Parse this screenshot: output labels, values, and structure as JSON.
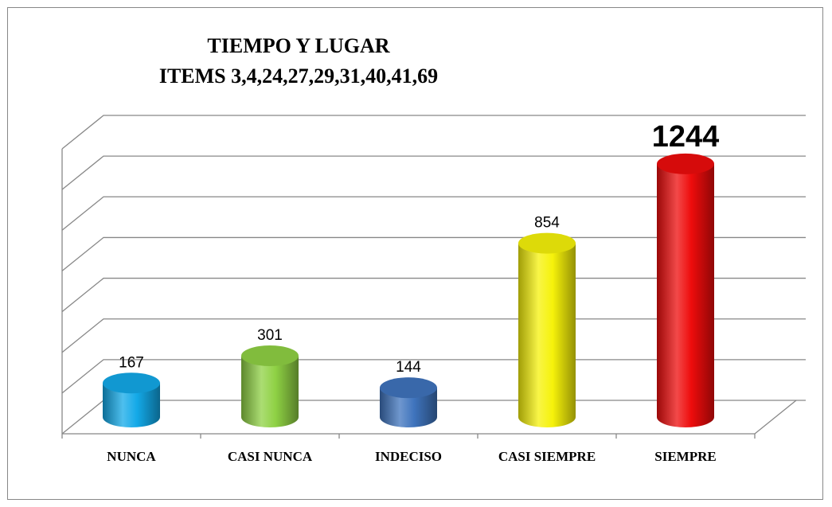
{
  "chart_data": {
    "type": "bar3d",
    "title": "TIEMPO Y LUGAR",
    "subtitle": "ITEMS 3,4,24,27,29,31,40,41,69",
    "categories": [
      "NUNCA",
      "CASI NUNCA",
      "INDECISO",
      "CASI SIEMPRE",
      "SIEMPRE"
    ],
    "values": [
      167,
      301,
      144,
      854,
      1244
    ],
    "colors": [
      "#13a9e8",
      "#8fd144",
      "#3f74bd",
      "#f6f20a",
      "#ee0c0c"
    ],
    "ylim": [
      0,
      1400
    ],
    "yticks": [
      0,
      200,
      400,
      600,
      800,
      1000,
      1200,
      1400
    ],
    "grid": true
  }
}
